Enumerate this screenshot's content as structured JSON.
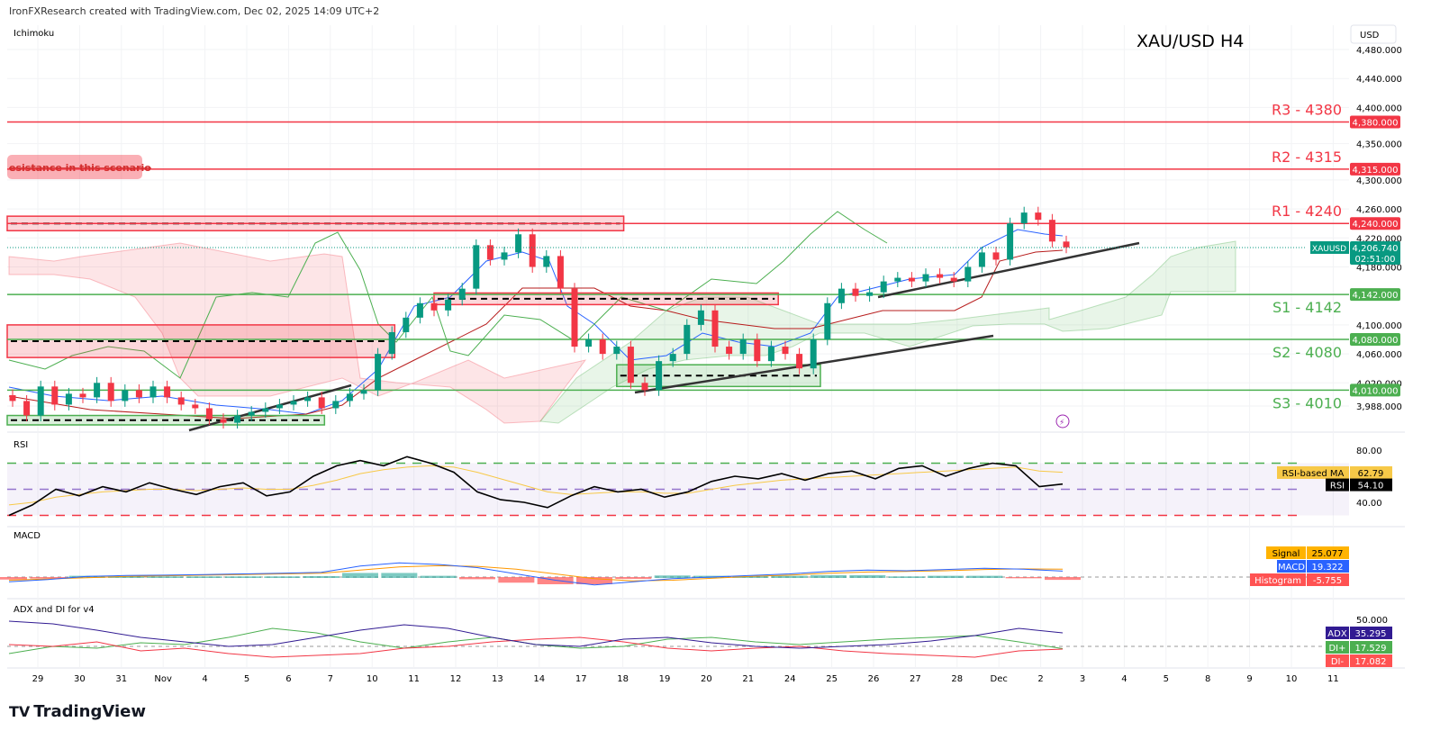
{
  "header": {
    "credit": "IronFXResearch created with TradingView.com, Dec 02, 2025 14:09 UTC+2"
  },
  "footer": {
    "logo": "TradingView"
  },
  "colors": {
    "up": "#089981",
    "down": "#f23645",
    "resistance": "#f23645",
    "support": "#4caf50",
    "rsi": "#000000",
    "rsi_ma": "#f7c948",
    "macd": "#2962ff",
    "signal": "#ff9800",
    "adx": "#311b92",
    "di_plus": "#4caf50",
    "di_minus": "#f23645"
  },
  "chart_data": [
    {
      "type": "candlestick",
      "title": "XAU/USD H4",
      "indicator_label": "Ichimoku",
      "currency": "USD",
      "symbol": "XAUUSD",
      "last_price": "4,206.740",
      "countdown": "02:51:00",
      "y_ticks": [
        "4,480.000",
        "4,440.000",
        "4,400.000",
        "4,350.000",
        "4,300.000",
        "4,260.000",
        "4,220.000",
        "4,180.000",
        "4,100.000",
        "4,060.000",
        "4,020.000",
        "3,988.000"
      ],
      "y_tick_values": [
        4480,
        4440,
        4400,
        4350,
        4300,
        4260,
        4220,
        4180,
        4100,
        4060,
        4020,
        3988
      ],
      "x_ticks": [
        "29",
        "30",
        "31",
        "Nov",
        "4",
        "5",
        "6",
        "7",
        "10",
        "11",
        "12",
        "13",
        "14",
        "17",
        "18",
        "19",
        "20",
        "21",
        "24",
        "25",
        "26",
        "27",
        "28",
        "Dec",
        "2",
        "3",
        "4",
        "5",
        "8",
        "9",
        "10",
        "11"
      ],
      "closes": [
        3995,
        3975,
        4015,
        3990,
        4005,
        4000,
        4020,
        3995,
        4010,
        4000,
        4015,
        4000,
        3990,
        3985,
        3970,
        3965,
        3975,
        3980,
        3985,
        3990,
        3995,
        4000,
        3985,
        3995,
        4005,
        4010,
        4060,
        4090,
        4110,
        4130,
        4120,
        4135,
        4150,
        4210,
        4190,
        4200,
        4225,
        4180,
        4195,
        4150,
        4070,
        4080,
        4060,
        4070,
        4020,
        4010,
        4050,
        4060,
        4100,
        4120,
        4070,
        4060,
        4080,
        4050,
        4070,
        4060,
        4040,
        4080,
        4130,
        4150,
        4140,
        4145,
        4160,
        4165,
        4160,
        4170,
        4165,
        4160,
        4180,
        4200,
        4190,
        4240,
        4255,
        4245,
        4215,
        4207
      ],
      "levels": [
        {
          "label": "R3 - 4380",
          "price": 4380,
          "tag": "4,380.000",
          "kind": "resistance"
        },
        {
          "label": "R2 - 4315",
          "price": 4315,
          "tag": "4,315.000",
          "kind": "resistance"
        },
        {
          "label": "R1 - 4240",
          "price": 4240,
          "tag": "4,240.000",
          "kind": "resistance"
        },
        {
          "label": "S1 - 4142",
          "price": 4142,
          "tag": "4,142.000",
          "kind": "support"
        },
        {
          "label": "S2 - 4080",
          "price": 4080,
          "tag": "4,080.000",
          "kind": "support"
        },
        {
          "label": "S3 - 4010",
          "price": 4010,
          "tag": "4,010.000",
          "kind": "support"
        }
      ],
      "zones": [
        {
          "kind": "resistance",
          "top": 4250,
          "bottom": 4230,
          "from_bar": -0.5,
          "to_bar": 43.5
        },
        {
          "kind": "resistance",
          "top": 4144,
          "bottom": 4128,
          "from_bar": 30,
          "to_bar": 54.5
        },
        {
          "kind": "resistance",
          "top": 4100,
          "bottom": 4055,
          "from_bar": -0.5,
          "to_bar": 27.2
        },
        {
          "kind": "support",
          "top": 4045,
          "bottom": 4015,
          "from_bar": 43,
          "to_bar": 57.5
        },
        {
          "kind": "support",
          "top": 3975,
          "bottom": 3962,
          "from_bar": -0.5,
          "to_bar": 22.2
        }
      ],
      "annotation": "esistance in this scenario"
    },
    {
      "type": "line",
      "title": "RSI",
      "y_ticks": [
        "80.00",
        "40.00"
      ],
      "bands": [
        70,
        50,
        30
      ],
      "rsi": [
        30,
        38,
        50,
        45,
        52,
        48,
        55,
        50,
        46,
        52,
        55,
        45,
        48,
        60,
        68,
        72,
        68,
        75,
        70,
        63,
        48,
        42,
        40,
        36,
        45,
        52,
        48,
        50,
        44,
        48,
        56,
        60,
        58,
        62,
        57,
        62,
        64,
        58,
        66,
        68,
        60,
        66,
        70,
        68,
        52,
        54
      ],
      "rsi_ma": [
        38,
        40,
        44,
        46,
        48,
        49,
        50,
        50,
        49,
        50,
        51,
        50,
        50,
        53,
        57,
        62,
        65,
        67,
        68,
        67,
        63,
        58,
        53,
        48,
        46,
        47,
        48,
        48,
        47,
        47,
        50,
        53,
        55,
        57,
        58,
        59,
        60,
        61,
        62,
        63,
        64,
        65,
        66,
        67,
        64,
        63
      ],
      "labels": {
        "ma": "RSI-based MA",
        "ma_value": "62.79",
        "rsi": "RSI",
        "rsi_value": "54.10"
      }
    },
    {
      "type": "line",
      "title": "MACD",
      "macd": [
        -15,
        -8,
        2,
        5,
        6,
        8,
        10,
        12,
        15,
        35,
        45,
        40,
        30,
        10,
        -10,
        -25,
        -15,
        -5,
        0,
        5,
        10,
        18,
        22,
        20,
        24,
        28,
        25,
        19
      ],
      "signal": [
        -10,
        -6,
        -2,
        2,
        4,
        6,
        8,
        10,
        12,
        22,
        32,
        36,
        34,
        25,
        10,
        -5,
        -12,
        -10,
        -4,
        2,
        6,
        12,
        16,
        18,
        20,
        24,
        26,
        25
      ],
      "labels": {
        "signal": "Signal",
        "signal_value": "25.077",
        "macd": "MACD",
        "macd_value": "19.322",
        "hist": "Histogram",
        "hist_value": "-5.755"
      }
    },
    {
      "type": "line",
      "title": "ADX and DI for v4",
      "y_ticks": [
        "50.000"
      ],
      "adx": [
        48,
        45,
        38,
        30,
        25,
        20,
        22,
        30,
        38,
        44,
        40,
        30,
        22,
        20,
        28,
        30,
        24,
        20,
        18,
        20,
        22,
        26,
        32,
        40,
        35
      ],
      "di_plus": [
        12,
        20,
        18,
        24,
        22,
        30,
        40,
        35,
        25,
        18,
        25,
        30,
        22,
        18,
        20,
        28,
        30,
        25,
        22,
        25,
        28,
        30,
        32,
        25,
        17.5
      ],
      "di_minus": [
        22,
        20,
        25,
        15,
        18,
        12,
        8,
        10,
        12,
        18,
        20,
        25,
        28,
        30,
        25,
        18,
        15,
        18,
        20,
        15,
        12,
        10,
        8,
        15,
        17
      ],
      "labels": {
        "adx": "ADX",
        "adx_value": "35.295",
        "dip": "DI+",
        "dip_value": "17.529",
        "dim": "DI-",
        "dim_value": "17.082"
      }
    }
  ]
}
